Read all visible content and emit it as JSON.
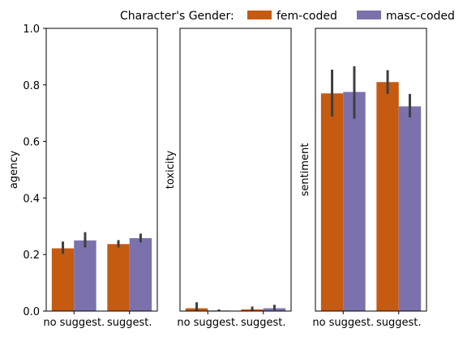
{
  "legend": {
    "title": "Character's Gender:",
    "placement": "top",
    "entries": [
      {
        "label": "fem-coded",
        "color": "#c55a11"
      },
      {
        "label": "masc-coded",
        "color": "#7b72ad"
      }
    ]
  },
  "chart_data": [
    {
      "type": "bar",
      "ylabel": "agency",
      "categories": [
        "no suggest.",
        "suggest."
      ],
      "ylim": [
        0,
        1.0
      ],
      "yticks": [
        "0.0",
        "0.2",
        "0.4",
        "0.6",
        "0.8",
        "1.0"
      ],
      "series": [
        {
          "name": "fem-coded",
          "values": [
            0.222,
            0.237
          ],
          "ci": [
            [
              0.202,
              0.246
            ],
            [
              0.225,
              0.251
            ]
          ]
        },
        {
          "name": "masc-coded",
          "values": [
            0.25,
            0.258
          ],
          "ci": [
            [
              0.225,
              0.279
            ],
            [
              0.243,
              0.274
            ]
          ]
        }
      ]
    },
    {
      "type": "bar",
      "ylabel": "toxicity",
      "categories": [
        "no suggest.",
        "suggest."
      ],
      "ylim": [
        0,
        1.0
      ],
      "series": [
        {
          "name": "fem-coded",
          "values": [
            0.01,
            0.006
          ],
          "ci": [
            [
              0.0,
              0.031
            ],
            [
              0.0,
              0.016
            ]
          ]
        },
        {
          "name": "masc-coded",
          "values": [
            0.002,
            0.01
          ],
          "ci": [
            [
              0.0,
              0.006
            ],
            [
              0.003,
              0.022
            ]
          ]
        }
      ]
    },
    {
      "type": "bar",
      "ylabel": "sentiment",
      "categories": [
        "no suggest.",
        "suggest."
      ],
      "ylim": [
        0,
        1.0
      ],
      "series": [
        {
          "name": "fem-coded",
          "values": [
            0.77,
            0.81
          ],
          "ci": [
            [
              0.688,
              0.854
            ],
            [
              0.768,
              0.852
            ]
          ]
        },
        {
          "name": "masc-coded",
          "values": [
            0.775,
            0.724
          ],
          "ci": [
            [
              0.68,
              0.866
            ],
            [
              0.685,
              0.768
            ]
          ]
        }
      ]
    }
  ]
}
